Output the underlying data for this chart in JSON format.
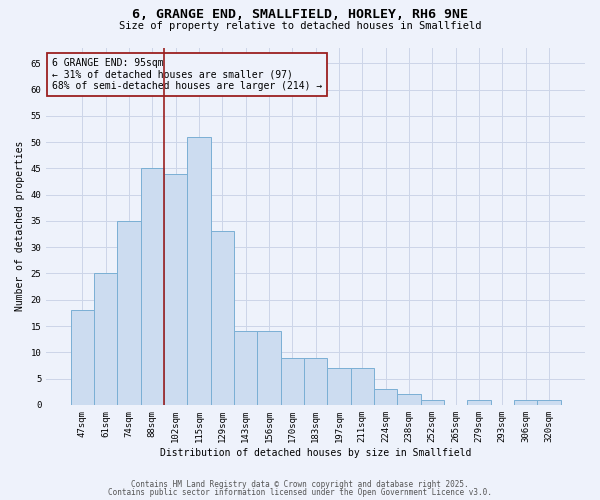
{
  "title_line1": "6, GRANGE END, SMALLFIELD, HORLEY, RH6 9NE",
  "title_line2": "Size of property relative to detached houses in Smallfield",
  "xlabel": "Distribution of detached houses by size in Smallfield",
  "ylabel": "Number of detached properties",
  "categories": [
    "47sqm",
    "61sqm",
    "74sqm",
    "88sqm",
    "102sqm",
    "115sqm",
    "129sqm",
    "143sqm",
    "156sqm",
    "170sqm",
    "183sqm",
    "197sqm",
    "211sqm",
    "224sqm",
    "238sqm",
    "252sqm",
    "265sqm",
    "279sqm",
    "293sqm",
    "306sqm",
    "320sqm"
  ],
  "values": [
    18,
    25,
    35,
    45,
    44,
    51,
    33,
    14,
    14,
    9,
    9,
    7,
    7,
    3,
    2,
    1,
    0,
    1,
    0,
    1,
    1
  ],
  "bar_color": "#ccdcf0",
  "bar_edge_color": "#7aafd4",
  "vline_x_index": 3.5,
  "vline_color": "#9b2020",
  "annotation_text": "6 GRANGE END: 95sqm\n← 31% of detached houses are smaller (97)\n68% of semi-detached houses are larger (214) →",
  "annotation_box_edge_color": "#9b2020",
  "ylim": [
    0,
    68
  ],
  "yticks": [
    0,
    5,
    10,
    15,
    20,
    25,
    30,
    35,
    40,
    45,
    50,
    55,
    60,
    65
  ],
  "footer_line1": "Contains HM Land Registry data © Crown copyright and database right 2025.",
  "footer_line2": "Contains public sector information licensed under the Open Government Licence v3.0.",
  "bg_color": "#eef2fb",
  "grid_color": "#ccd5e8",
  "title1_fontsize": 9.5,
  "title2_fontsize": 7.5,
  "axis_label_fontsize": 7,
  "tick_fontsize": 6.5,
  "annotation_fontsize": 7,
  "footer_fontsize": 5.5
}
